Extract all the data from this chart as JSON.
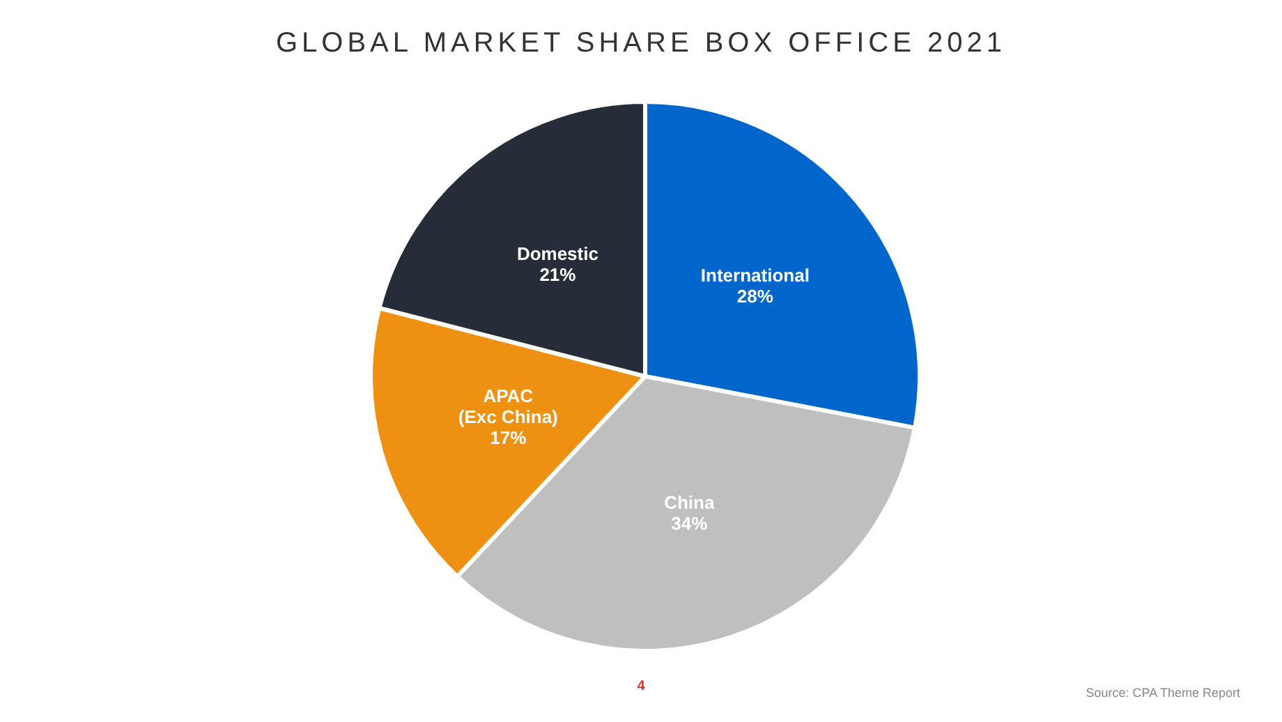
{
  "chart_data": {
    "type": "pie",
    "title": "GLOBAL MARKET SHARE BOX OFFICE 2021",
    "categories": [
      "International",
      "China",
      "APAC\n(Exc China)",
      "Domestic"
    ],
    "values": [
      28,
      34,
      17,
      21
    ],
    "value_labels": [
      "28%",
      "34%",
      "17%",
      "21%"
    ],
    "colors": [
      "#0066cc",
      "#bfbfbf",
      "#ee9012",
      "#262d38"
    ],
    "legend": false,
    "annotations": [
      "4",
      "Source: CPA Theme Report"
    ]
  }
}
